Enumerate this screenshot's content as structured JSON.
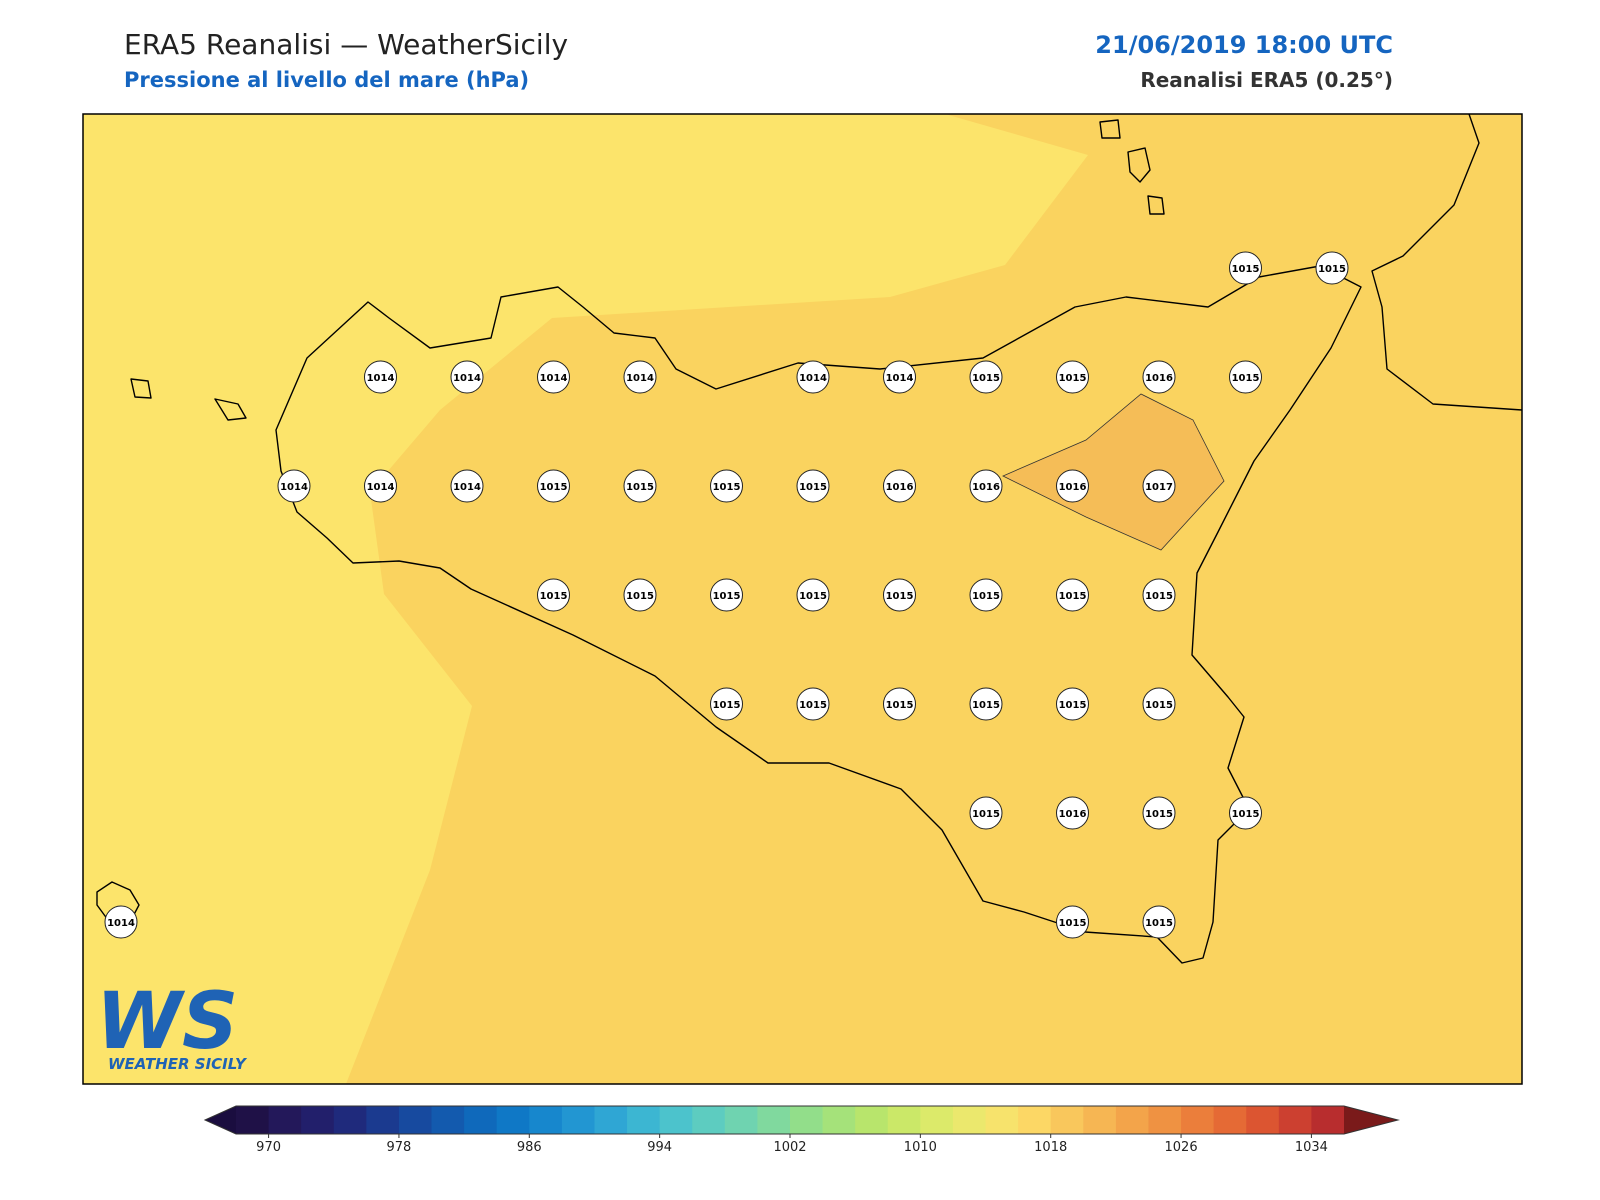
{
  "header": {
    "title": "ERA5 Reanalisi — WeatherSicily",
    "subtitle": "Pressione al livello del mare (hPa)",
    "datetime": "21/06/2019 18:00 UTC",
    "source": "Reanalisi ERA5 (0.25°)"
  },
  "stations": {
    "grid": [
      [
        null,
        null,
        null,
        null,
        null,
        null,
        null,
        null,
        null,
        null,
        null,
        null,
        null,
        1015,
        1015
      ],
      [
        null,
        null,
        null,
        1014,
        1014,
        1014,
        1014,
        null,
        1014,
        1014,
        1015,
        1015,
        1016,
        1015,
        null
      ],
      [
        null,
        null,
        1014,
        1014,
        1014,
        1015,
        1015,
        1015,
        1015,
        1016,
        1016,
        1016,
        1017,
        null,
        null
      ],
      [
        null,
        null,
        null,
        null,
        null,
        1015,
        1015,
        1015,
        1015,
        1015,
        1015,
        1015,
        1015,
        null,
        null
      ],
      [
        null,
        null,
        null,
        null,
        null,
        null,
        null,
        1015,
        1015,
        1015,
        1015,
        1015,
        1015,
        null,
        null
      ],
      [
        null,
        null,
        null,
        null,
        null,
        null,
        null,
        null,
        null,
        null,
        1015,
        1016,
        1015,
        1015,
        null
      ],
      [
        1014,
        null,
        null,
        null,
        null,
        null,
        null,
        null,
        null,
        null,
        null,
        1015,
        1015,
        null,
        null
      ]
    ]
  },
  "colorbar": {
    "lim": [
      968,
      1036
    ],
    "ticks": [
      970,
      978,
      986,
      994,
      1002,
      1010,
      1018,
      1026,
      1034
    ],
    "colors": [
      "#1f1147",
      "#23185a",
      "#221f6b",
      "#1f2a7c",
      "#1b3a8f",
      "#174a9f",
      "#135aae",
      "#0f69bb",
      "#0f78c6",
      "#1787cd",
      "#2296d2",
      "#2fa6d4",
      "#3cb6d2",
      "#4cc3cc",
      "#5dccc0",
      "#6fd3b0",
      "#80d99e",
      "#92de8a",
      "#a5e27a",
      "#b8e56c",
      "#cbe868",
      "#dcea6a",
      "#ebe86d",
      "#f7e36c",
      "#fcd765",
      "#f9c75c",
      "#f6b653",
      "#f3a44a",
      "#ef9242",
      "#eb7e3b",
      "#e56a35",
      "#dc5531",
      "#cc4030",
      "#b82d2e"
    ],
    "under": "#1a0d3f",
    "over": "#7a1a1a"
  },
  "logo": {
    "mark": "WS",
    "name": "WEATHER SICILY"
  }
}
